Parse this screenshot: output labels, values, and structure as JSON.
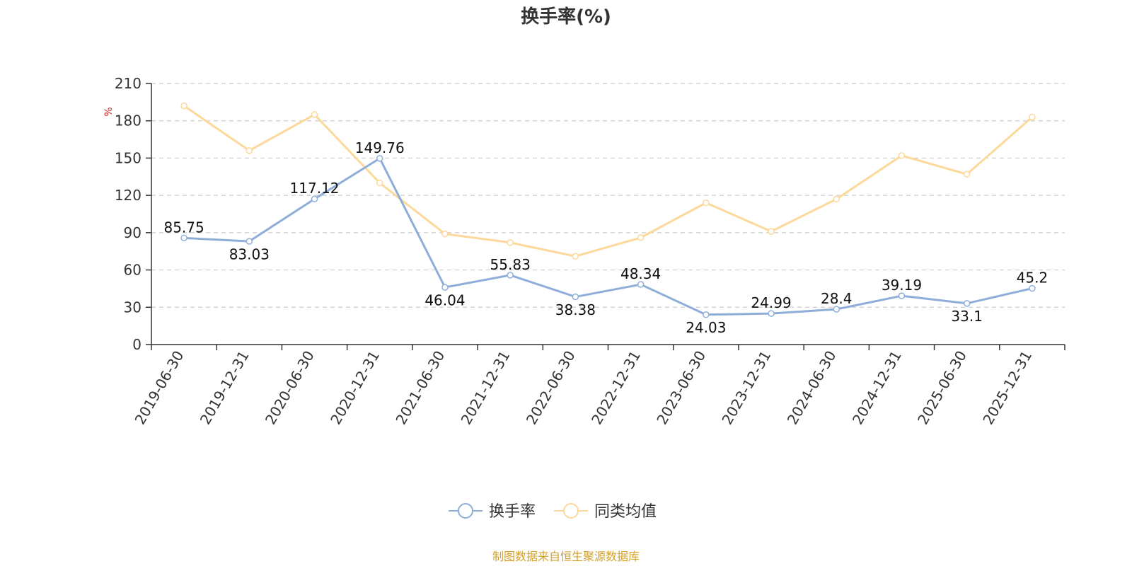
{
  "chart_data": {
    "type": "line",
    "title": "换手率(%)",
    "unit_label": "%",
    "categories": [
      "2019-06-30",
      "2019-12-31",
      "2020-06-30",
      "2020-12-31",
      "2021-06-30",
      "2021-12-31",
      "2022-06-30",
      "2022-12-31",
      "2023-06-30",
      "2023-12-31",
      "2024-06-30",
      "2024-12-31",
      "2025-06-30",
      "2025-12-31"
    ],
    "ylim": [
      0,
      210
    ],
    "yticks": [
      0,
      30,
      60,
      90,
      120,
      150,
      180,
      210
    ],
    "grid": true,
    "legend_position": "bottom-center",
    "series": [
      {
        "name": "换手率",
        "color": "#8eadd9",
        "show_labels": true,
        "values": [
          85.75,
          83.03,
          117.12,
          149.76,
          46.04,
          55.83,
          38.38,
          48.34,
          24.03,
          24.99,
          28.4,
          39.19,
          33.1,
          45.2
        ]
      },
      {
        "name": "同类均值",
        "color": "#fcd89a",
        "show_labels": false,
        "values": [
          192,
          156,
          185,
          130,
          89,
          82,
          71,
          86,
          114,
          91,
          117,
          152,
          137,
          183
        ]
      }
    ]
  },
  "footer": {
    "source": "制图数据来自恒生聚源数据库",
    "source_color": "#d4a12e"
  },
  "colors": {
    "unit": "#e02020",
    "axis": "#333333",
    "grid": "#cccccc"
  }
}
